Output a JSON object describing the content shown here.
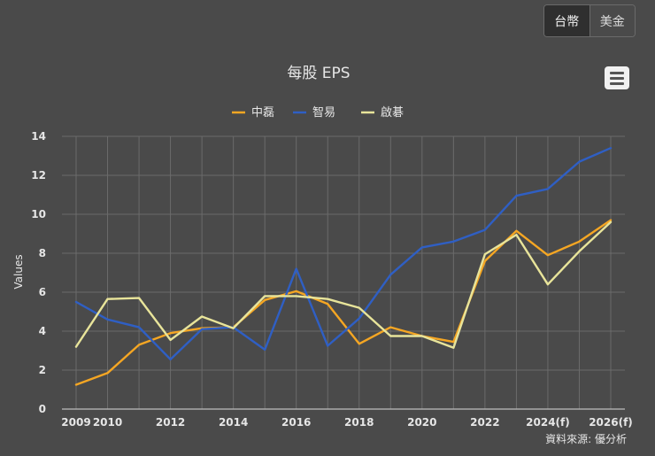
{
  "currency_toggle": {
    "options": [
      "台幣",
      "美金"
    ],
    "selected": "台幣"
  },
  "menu": {
    "icon": "hamburger-menu-icon"
  },
  "credit": "資料來源: 優分析",
  "colors": {
    "background": "#4a4a4a",
    "grid": "#6b6b6b",
    "text": "#e6e6e6"
  },
  "chart_data": {
    "type": "line",
    "title": "每股 EPS",
    "xlabel": "",
    "ylabel": "Values",
    "ylim": [
      0,
      14
    ],
    "yticks": [
      0,
      2,
      4,
      6,
      8,
      10,
      12,
      14
    ],
    "categories": [
      "2009",
      "2010",
      "2011",
      "2012",
      "2013",
      "2014",
      "2015",
      "2016",
      "2017",
      "2018",
      "2019",
      "2020",
      "2021",
      "2022",
      "2023",
      "2024(f)",
      "2025(f)",
      "2026(f)"
    ],
    "xtick_labels": [
      "2009",
      "2010",
      "2012",
      "2014",
      "2016",
      "2018",
      "2020",
      "2022",
      "2024(f)",
      "2026(f)"
    ],
    "legend_position": "top-center",
    "series": [
      {
        "name": "中磊",
        "color": "#f5a623",
        "values": [
          1.25,
          1.85,
          3.3,
          3.9,
          4.15,
          4.2,
          5.6,
          6.05,
          5.4,
          3.35,
          4.2,
          3.75,
          3.45,
          7.6,
          9.15,
          7.9,
          8.6,
          9.7
        ]
      },
      {
        "name": "智易",
        "color": "#2f5fc4",
        "values": [
          5.5,
          4.6,
          4.2,
          2.55,
          4.1,
          4.2,
          3.05,
          7.2,
          3.25,
          4.65,
          6.9,
          8.3,
          8.6,
          9.2,
          10.95,
          11.3,
          12.7,
          13.4
        ]
      },
      {
        "name": "啟碁",
        "color": "#e8e49a",
        "values": [
          3.2,
          5.65,
          5.7,
          3.55,
          4.75,
          4.15,
          5.8,
          5.8,
          5.65,
          5.2,
          3.75,
          3.75,
          3.15,
          7.95,
          8.95,
          6.4,
          8.1,
          9.6
        ]
      }
    ]
  }
}
